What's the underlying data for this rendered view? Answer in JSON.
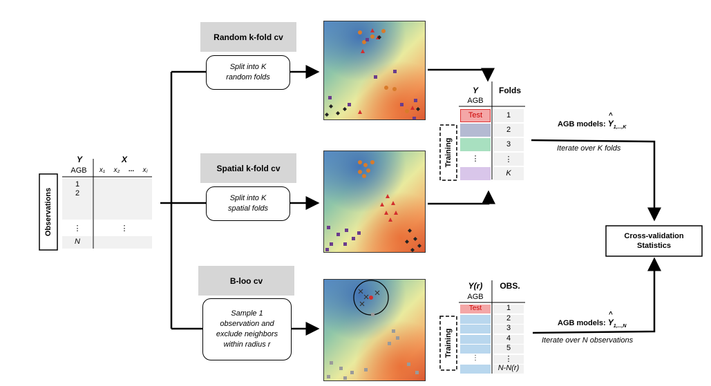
{
  "observations": {
    "side_label": "Observations",
    "y_header": "Y",
    "x_header": "X",
    "agb": "AGB",
    "x_cols": [
      "x₁",
      "x₂",
      "...",
      "xⱼ"
    ],
    "rows": [
      "1",
      "2",
      "⋮",
      "N"
    ],
    "x_dots": "⋮"
  },
  "random": {
    "header": "Random k-fold cv",
    "line1": "Split into K",
    "line2": "random folds"
  },
  "spatial": {
    "header": "Spatial k-fold cv",
    "line1": "Split into K",
    "line2": "spatial folds"
  },
  "bloo": {
    "header": "B-loo cv",
    "line1": "Sample 1",
    "line2": "observation and",
    "line3": "exclude neighbors",
    "line4": "within radius r"
  },
  "kfold_table": {
    "y_header": "Y",
    "agb": "AGB",
    "folds_header": "Folds",
    "test_label": "Test",
    "training_label": "Training",
    "folds": [
      "1",
      "2",
      "3",
      "⋮",
      "K"
    ],
    "row_colors": [
      "#f4a7a7",
      "#b4bad2",
      "#a8e0c0",
      "#ffffff",
      "#d9c6ea"
    ],
    "dots": "⋮"
  },
  "bloo_table": {
    "y_header": "Y(r)",
    "agb": "AGB",
    "obs_header": "OBS.",
    "test_label": "Test",
    "training_label": "Training",
    "obs": [
      "1",
      "2",
      "3",
      "4",
      "5",
      "⋮",
      "N-N(r)"
    ],
    "dots": "⋮",
    "test_color": "#f4a7a7",
    "train_color": "#b9d7ee"
  },
  "kfold_model": {
    "label": "AGB models: ",
    "yhat": "Y",
    "subscript": "1,...,K",
    "iterate": "Iterate over K folds"
  },
  "n_model": {
    "label": "AGB models: ",
    "yhat": "Y",
    "subscript": "1,...,N",
    "iterate": "Iterate over N observations"
  },
  "cv_stats": {
    "line1": "Cross-validation",
    "line2": "Statistics"
  }
}
